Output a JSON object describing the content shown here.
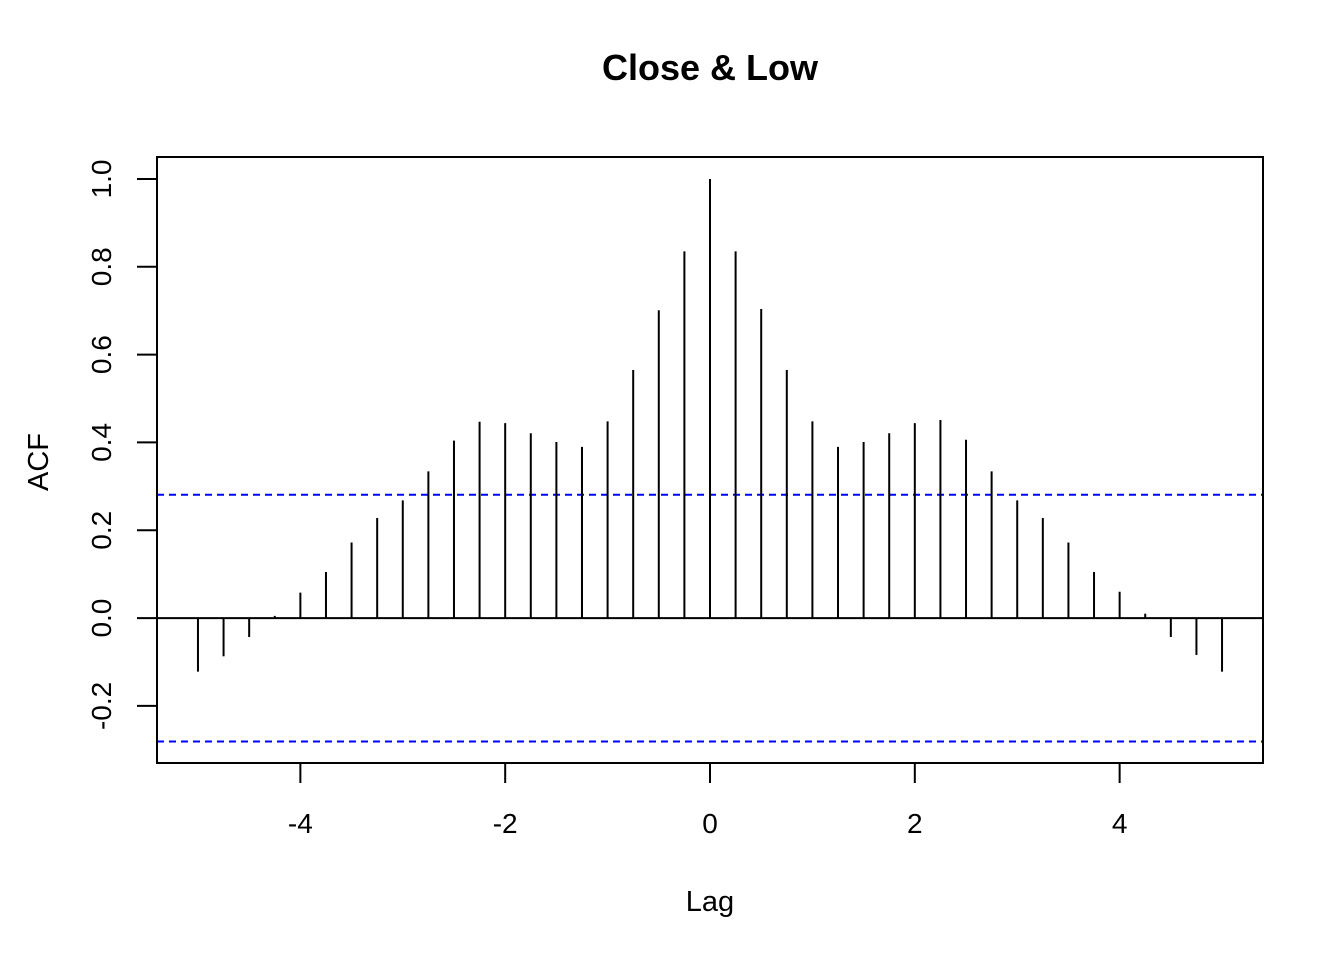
{
  "chart_data": {
    "type": "bar",
    "title": "Close & Low",
    "xlabel": "Lag",
    "ylabel": "ACF",
    "xlim": [
      -5.4,
      5.4
    ],
    "ylim": [
      -0.33,
      1.05
    ],
    "x_ticks": [
      -4,
      -2,
      0,
      2,
      4
    ],
    "x_tick_labels": [
      "-4",
      "-2",
      "0",
      "2",
      "4"
    ],
    "y_ticks": [
      -0.2,
      0.0,
      0.2,
      0.4,
      0.6,
      0.8,
      1.0
    ],
    "y_tick_labels": [
      "-0.2",
      "0.0",
      "0.2",
      "0.4",
      "0.6",
      "0.8",
      "1.0"
    ],
    "confidence_band": {
      "upper": 0.281,
      "lower": -0.281,
      "color": "#0000FF",
      "style": "dashed"
    },
    "zero_line": true,
    "grid": false,
    "series": [
      {
        "x": [
          -5,
          -4.75,
          -4.5,
          -4.25,
          -4,
          -3.75,
          -3.5,
          -3.25,
          -3,
          -2.75,
          -2.5,
          -2.25,
          -2,
          -1.75,
          -1.5,
          -1.25,
          -1,
          -0.75,
          -0.5,
          -0.25,
          0,
          0.25,
          0.5,
          0.75,
          1,
          1.25,
          1.5,
          1.75,
          2,
          2.25,
          2.5,
          2.75,
          3,
          3.25,
          3.5,
          3.75,
          4,
          4.25,
          4.5,
          4.75,
          5
        ],
        "values": [
          -0.122,
          -0.087,
          -0.043,
          0.005,
          0.058,
          0.105,
          0.172,
          0.228,
          0.268,
          0.334,
          0.404,
          0.447,
          0.444,
          0.421,
          0.401,
          0.39,
          0.448,
          0.565,
          0.701,
          0.835,
          1.0,
          0.835,
          0.704,
          0.565,
          0.448,
          0.39,
          0.401,
          0.421,
          0.444,
          0.451,
          0.406,
          0.334,
          0.268,
          0.228,
          0.172,
          0.105,
          0.06,
          0.01,
          -0.043,
          -0.084,
          -0.122
        ],
        "color": "#000000"
      }
    ]
  }
}
